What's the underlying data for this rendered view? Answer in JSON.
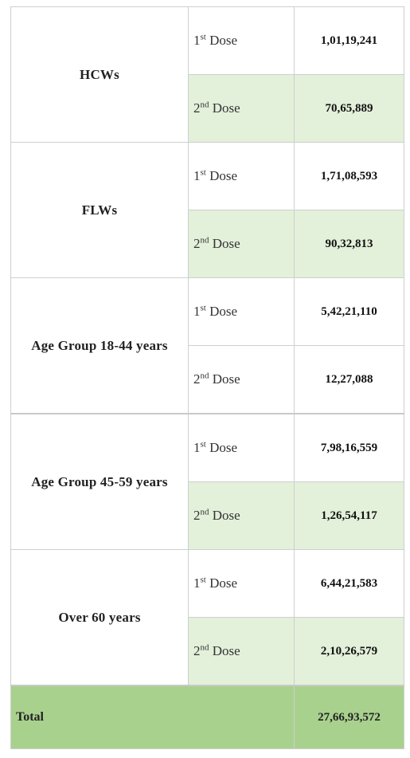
{
  "groups": [
    {
      "label": "HCWs",
      "dose1": {
        "num": "1",
        "suffix": "st",
        "word": "Dose",
        "value": "1,01,19,241"
      },
      "dose2": {
        "num": "2",
        "suffix": "nd",
        "word": "Dose",
        "value": "70,65,889"
      }
    },
    {
      "label": "FLWs",
      "dose1": {
        "num": "1",
        "suffix": "st",
        "word": "Dose",
        "value": "1,71,08,593"
      },
      "dose2": {
        "num": "2",
        "suffix": "nd",
        "word": "Dose",
        "value": "90,32,813"
      }
    },
    {
      "label": "Age Group 18-44 years",
      "dose1": {
        "num": "1",
        "suffix": "st",
        "word": "Dose",
        "value": "5,42,21,110"
      },
      "dose2": {
        "num": "2",
        "suffix": "nd",
        "word": "Dose",
        "value": "12,27,088"
      }
    },
    {
      "label": "Age Group 45-59 years",
      "dose1": {
        "num": "1",
        "suffix": "st",
        "word": "Dose",
        "value": "7,98,16,559"
      },
      "dose2": {
        "num": "2",
        "suffix": "nd",
        "word": "Dose",
        "value": "1,26,54,117"
      }
    },
    {
      "label": "Over 60 years",
      "dose1": {
        "num": "1",
        "suffix": "st",
        "word": "Dose",
        "value": "6,44,21,583"
      },
      "dose2": {
        "num": "2",
        "suffix": "nd",
        "word": "Dose",
        "value": "2,10,26,579"
      }
    }
  ],
  "total": {
    "label": "Total",
    "value": "27,66,93,572"
  },
  "colors": {
    "shade": "#e3f0da",
    "total": "#a9d18e",
    "border": "#cfcfcf"
  }
}
